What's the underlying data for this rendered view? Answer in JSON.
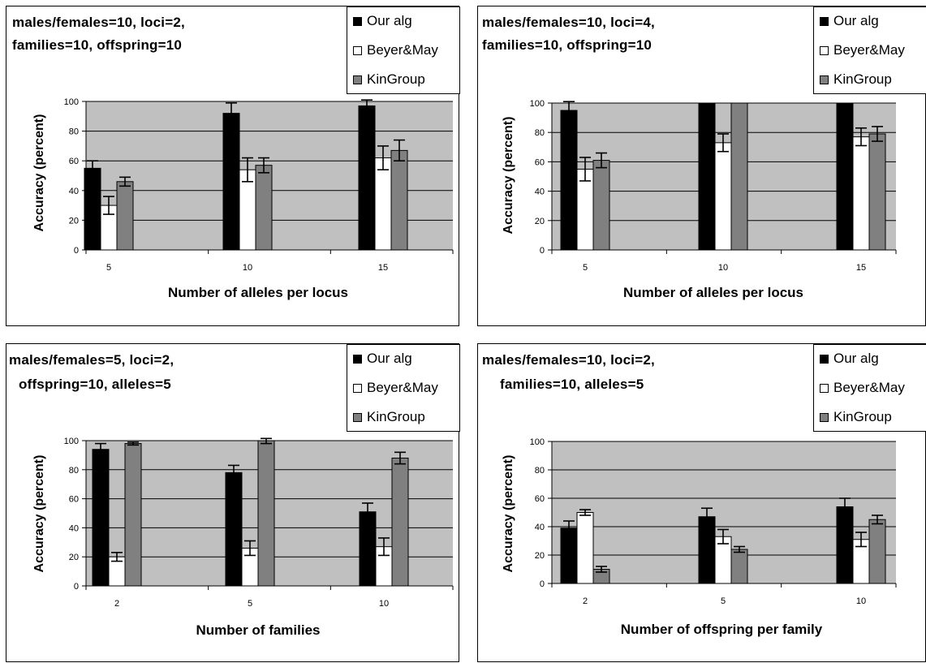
{
  "chart_data": [
    {
      "type": "bar",
      "title_lines": [
        "males/females=10, loci=2,",
        "families=10, offspring=10"
      ],
      "xlabel": "Number of alleles per locus",
      "ylabel": "Accuracy (percent)",
      "categories": [
        "5",
        "10",
        "15"
      ],
      "ylim": [
        0,
        100
      ],
      "yticks": [
        "0",
        "20",
        "40",
        "60",
        "80",
        "100"
      ],
      "grid": true,
      "legend_position": "top-right",
      "series": [
        {
          "name": "Our alg",
          "values": [
            55,
            92,
            97
          ],
          "errors": [
            5,
            7,
            4
          ]
        },
        {
          "name": "Beyer&May",
          "values": [
            30,
            54,
            62
          ],
          "errors": [
            6,
            8,
            8
          ]
        },
        {
          "name": "KinGroup",
          "values": [
            46,
            57,
            67
          ],
          "errors": [
            3,
            5,
            7
          ]
        }
      ]
    },
    {
      "type": "bar",
      "title_lines": [
        "males/females=10, loci=4,",
        "families=10, offspring=10"
      ],
      "xlabel": "Number of alleles per locus",
      "ylabel": "Accuracy (percent)",
      "categories": [
        "5",
        "10",
        "15"
      ],
      "ylim": [
        0,
        100
      ],
      "yticks": [
        "0",
        "20",
        "40",
        "60",
        "80",
        "100"
      ],
      "grid": true,
      "legend_position": "top-right",
      "series": [
        {
          "name": "Our alg",
          "values": [
            95,
            100,
            100
          ],
          "errors": [
            6,
            0,
            0
          ]
        },
        {
          "name": "Beyer&May",
          "values": [
            55,
            73,
            77
          ],
          "errors": [
            8,
            6,
            6
          ]
        },
        {
          "name": "KinGroup",
          "values": [
            61,
            100,
            79
          ],
          "errors": [
            5,
            0,
            5
          ]
        }
      ]
    },
    {
      "type": "bar",
      "title_lines": [
        "males/females=5, loci=2,",
        "offspring=10, alleles=5"
      ],
      "xlabel": "Number of families",
      "ylabel": "Accuracy (percent)",
      "categories": [
        "2",
        "5",
        "10"
      ],
      "ylim": [
        0,
        100
      ],
      "yticks": [
        "0",
        "20",
        "40",
        "60",
        "80",
        "100"
      ],
      "grid": true,
      "legend_position": "top-right",
      "series": [
        {
          "name": "Our alg",
          "values": [
            94,
            78,
            51
          ],
          "errors": [
            4,
            5,
            6
          ]
        },
        {
          "name": "Beyer&May",
          "values": [
            20,
            26,
            27
          ],
          "errors": [
            3,
            5,
            6
          ]
        },
        {
          "name": "KinGroup",
          "values": [
            98,
            100,
            88
          ],
          "errors": [
            1,
            2,
            4
          ]
        }
      ]
    },
    {
      "type": "bar",
      "title_lines": [
        "males/females=10, loci=2,",
        "families=10, alleles=5"
      ],
      "xlabel": "Number of offspring per family",
      "ylabel": "Accuracy (percent)",
      "categories": [
        "2",
        "5",
        "10"
      ],
      "ylim": [
        0,
        100
      ],
      "yticks": [
        "0",
        "20",
        "40",
        "60",
        "80",
        "100"
      ],
      "grid": true,
      "legend_position": "top-right",
      "series": [
        {
          "name": "Our alg",
          "values": [
            39,
            47,
            54
          ],
          "errors": [
            5,
            6,
            6
          ]
        },
        {
          "name": "Beyer&May",
          "values": [
            50,
            33,
            31
          ],
          "errors": [
            2,
            5,
            5
          ]
        },
        {
          "name": "KinGroup",
          "values": [
            10,
            24,
            45
          ],
          "errors": [
            2,
            2,
            3
          ]
        }
      ]
    }
  ],
  "colors": {
    "series": [
      "#000000",
      "#ffffff",
      "#808080"
    ],
    "plot_background": "#c0c0c0"
  }
}
